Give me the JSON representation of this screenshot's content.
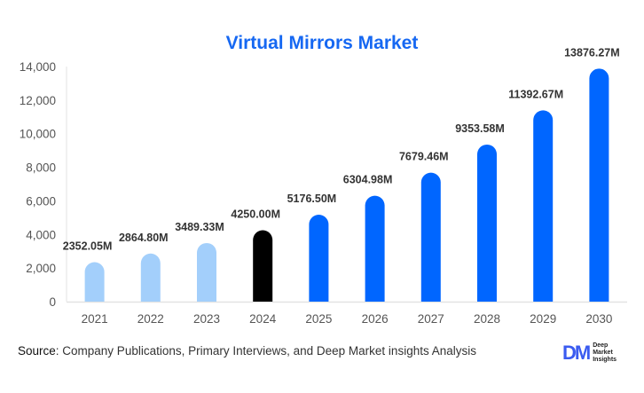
{
  "chart_data": {
    "type": "bar",
    "title": "Virtual Mirrors Market",
    "categories": [
      "2021",
      "2022",
      "2023",
      "2024",
      "2025",
      "2026",
      "2027",
      "2028",
      "2029",
      "2030"
    ],
    "values": [
      2352.05,
      2864.8,
      3489.33,
      4250.0,
      5176.5,
      6304.98,
      7679.46,
      9353.58,
      11392.67,
      13876.27
    ],
    "data_labels": [
      "2352.05M",
      "2864.80M",
      "3489.33M",
      "4250.00M",
      "5176.50M",
      "6304.98M",
      "7679.46M",
      "9353.58M",
      "11392.67M",
      "13876.27M"
    ],
    "bar_colors": [
      "#a3cffb",
      "#a3cffb",
      "#a3cffb",
      "#000000",
      "#0066ff",
      "#0066ff",
      "#0066ff",
      "#0066ff",
      "#0066ff",
      "#0066ff"
    ],
    "ylim": [
      0,
      14000
    ],
    "yticks": [
      "0",
      "2,000",
      "4,000",
      "6,000",
      "8,000",
      "10,000",
      "12,000",
      "14,000"
    ],
    "grid": false,
    "xlabel": "",
    "ylabel": ""
  },
  "source": {
    "label": "Source",
    "text": ": Company Publications, Primary Interviews, and Deep Market insights Analysis"
  },
  "logo": {
    "mark": "DM",
    "name": "Deep Market Insights"
  }
}
